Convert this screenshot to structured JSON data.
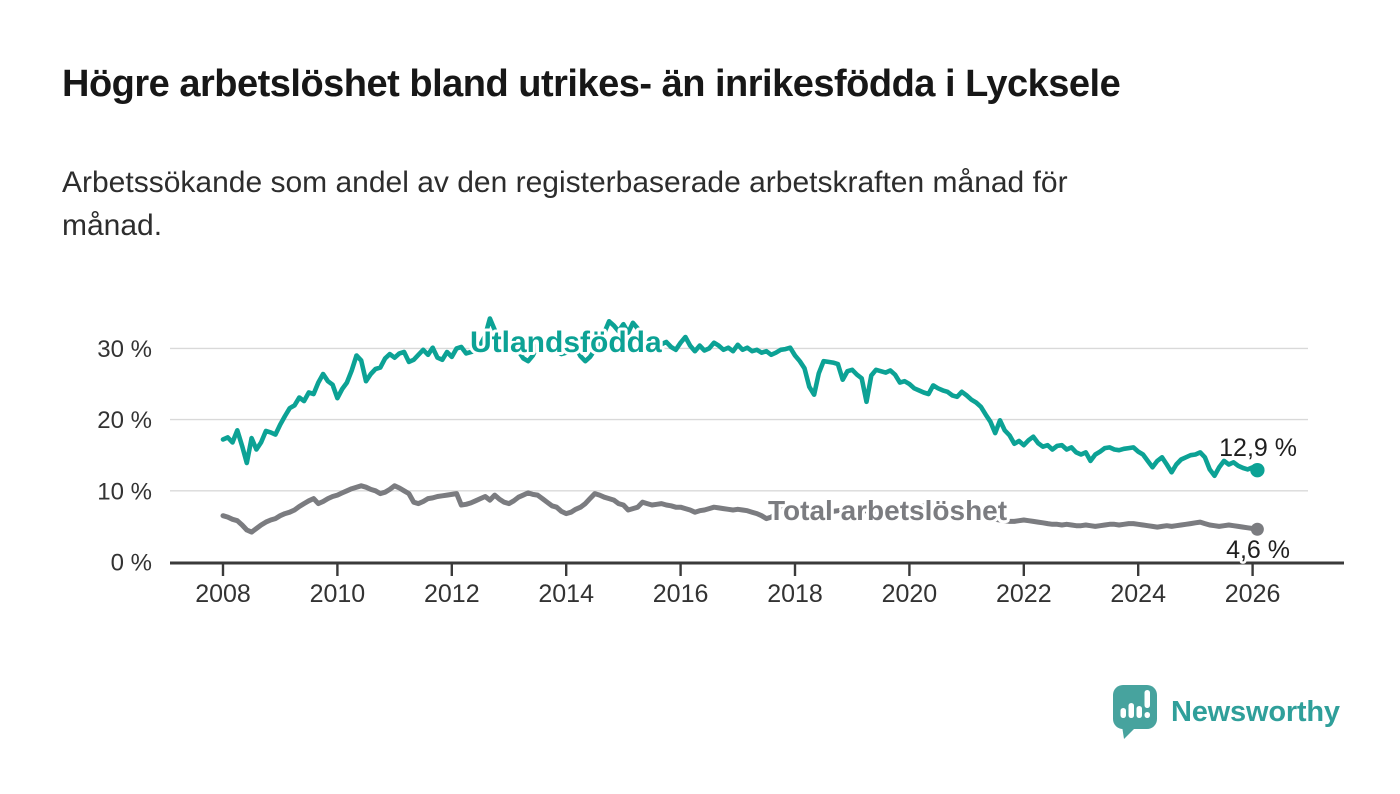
{
  "title": "Högre arbetslöshet bland utrikes- än inrikesfödda i Lycksele",
  "subtitle_lines": [
    "Arbetssökande som andel av den registerbaserade arbetskraften månad för",
    "månad."
  ],
  "chart_data": {
    "type": "line",
    "unit": "%",
    "frequency": "monthly",
    "x_start": "2008-01",
    "x_end": "2026-02",
    "grid": "horizontal",
    "ylim": [
      0,
      36
    ],
    "x_ticks": [
      "2008",
      "2010",
      "2012",
      "2014",
      "2016",
      "2018",
      "2020",
      "2022",
      "2024",
      "2026"
    ],
    "y_ticks": [
      {
        "value": 0,
        "label": "0 %"
      },
      {
        "value": 10,
        "label": "10 %"
      },
      {
        "value": 20,
        "label": "20 %"
      },
      {
        "value": 30,
        "label": "30 %"
      }
    ],
    "series": [
      {
        "name": "Utlandsfödda",
        "color": "#0ca295",
        "end_value": 12.9,
        "end_label": "12,9 %",
        "values": [
          17.2,
          17.5,
          16.8,
          18.5,
          16.3,
          13.9,
          17.4,
          15.8,
          16.8,
          18.4,
          18.2,
          17.9,
          19.3,
          20.5,
          21.6,
          22.0,
          23.1,
          22.6,
          23.8,
          23.6,
          25.2,
          26.4,
          25.4,
          24.9,
          23.0,
          24.3,
          25.2,
          26.9,
          29.0,
          28.3,
          25.4,
          26.4,
          27.1,
          27.3,
          28.6,
          29.2,
          28.7,
          29.3,
          29.5,
          28.1,
          28.4,
          29.1,
          29.8,
          29.1,
          30.1,
          28.7,
          28.4,
          29.5,
          28.8,
          30.0,
          30.2,
          29.3,
          29.5,
          29.7,
          30.5,
          31.8,
          34.2,
          32.6,
          30.4,
          29.6,
          30.2,
          30.8,
          29.6,
          28.6,
          28.2,
          29.0,
          30.4,
          31.2,
          30.6,
          30.0,
          29.6,
          29.2,
          29.4,
          29.8,
          30.2,
          28.9,
          28.2,
          28.8,
          29.8,
          31.0,
          32.2,
          33.8,
          33.2,
          32.4,
          33.4,
          32.2,
          33.6,
          32.8,
          31.0,
          29.6,
          30.8,
          31.6,
          30.6,
          30.9,
          30.2,
          29.8,
          30.8,
          31.6,
          30.4,
          29.6,
          30.4,
          29.7,
          30.0,
          30.8,
          30.4,
          29.8,
          30.1,
          29.6,
          30.5,
          29.8,
          30.1,
          29.6,
          29.8,
          29.4,
          29.6,
          29.1,
          29.4,
          29.8,
          29.9,
          30.1,
          29.0,
          28.2,
          27.2,
          24.6,
          23.5,
          26.5,
          28.2,
          28.1,
          28.0,
          27.8,
          25.6,
          26.8,
          27.0,
          26.3,
          25.8,
          22.5,
          26.2,
          27.0,
          26.8,
          26.6,
          26.9,
          26.3,
          25.2,
          25.4,
          25.0,
          24.4,
          24.1,
          23.8,
          23.6,
          24.8,
          24.4,
          24.1,
          23.9,
          23.4,
          23.2,
          23.9,
          23.4,
          22.8,
          22.4,
          21.8,
          20.7,
          19.7,
          18.1,
          19.9,
          18.5,
          17.8,
          16.6,
          17.0,
          16.4,
          17.1,
          17.6,
          16.7,
          16.2,
          16.4,
          15.8,
          16.3,
          16.4,
          15.8,
          16.1,
          15.4,
          15.1,
          15.4,
          14.2,
          15.1,
          15.5,
          16.0,
          16.1,
          15.8,
          15.7,
          15.9,
          16.0,
          16.1,
          15.5,
          15.1,
          14.2,
          13.3,
          14.2,
          14.7,
          13.7,
          12.6,
          13.7,
          14.4,
          14.7,
          15.0,
          15.1,
          15.4,
          14.7,
          13.0,
          12.1,
          13.3,
          14.2,
          13.7,
          14.0,
          13.5,
          13.2,
          13.0,
          13.3,
          12.9
        ]
      },
      {
        "name": "Total arbetslöshet",
        "color": "#7b7c80",
        "end_value": 4.6,
        "end_label": "4,6 %",
        "values": [
          6.5,
          6.3,
          6.0,
          5.8,
          5.2,
          4.5,
          4.2,
          4.7,
          5.2,
          5.6,
          5.9,
          6.1,
          6.5,
          6.8,
          7.0,
          7.3,
          7.8,
          8.2,
          8.6,
          8.9,
          8.2,
          8.5,
          8.9,
          9.2,
          9.4,
          9.7,
          10.0,
          10.3,
          10.5,
          10.7,
          10.5,
          10.2,
          10.0,
          9.6,
          9.8,
          10.2,
          10.7,
          10.4,
          10.0,
          9.6,
          8.4,
          8.2,
          8.5,
          8.9,
          9.0,
          9.2,
          9.3,
          9.4,
          9.5,
          9.6,
          8.0,
          8.1,
          8.3,
          8.6,
          8.9,
          9.2,
          8.7,
          9.4,
          8.8,
          8.4,
          8.2,
          8.6,
          9.1,
          9.4,
          9.7,
          9.5,
          9.4,
          8.9,
          8.4,
          7.9,
          7.7,
          7.1,
          6.8,
          7.0,
          7.4,
          7.7,
          8.2,
          8.9,
          9.6,
          9.4,
          9.1,
          8.9,
          8.7,
          8.2,
          8.0,
          7.3,
          7.5,
          7.7,
          8.4,
          8.2,
          8.0,
          8.1,
          8.2,
          8.0,
          7.9,
          7.7,
          7.7,
          7.5,
          7.3,
          7.0,
          7.2,
          7.3,
          7.5,
          7.7,
          7.6,
          7.5,
          7.4,
          7.3,
          7.4,
          7.3,
          7.2,
          7.0,
          6.8,
          6.5,
          6.1,
          6.3,
          6.8,
          7.3,
          7.5,
          7.6,
          7.7,
          7.6,
          7.4,
          7.2,
          7.3,
          7.4,
          7.2,
          7.0,
          7.1,
          7.2,
          7.3,
          7.2,
          7.1,
          7.0,
          7.1,
          7.2,
          7.1,
          7.0,
          6.9,
          7.0,
          7.1,
          7.0,
          6.9,
          7.0,
          7.2,
          7.3,
          7.6,
          7.9,
          8.0,
          7.9,
          7.8,
          7.7,
          7.5,
          7.3,
          7.1,
          7.0,
          6.9,
          6.8,
          6.7,
          6.5,
          6.3,
          6.1,
          6.0,
          5.9,
          5.8,
          5.7,
          5.7,
          5.8,
          5.9,
          5.8,
          5.7,
          5.6,
          5.5,
          5.4,
          5.3,
          5.3,
          5.2,
          5.3,
          5.2,
          5.1,
          5.1,
          5.2,
          5.1,
          5.0,
          5.1,
          5.2,
          5.3,
          5.3,
          5.2,
          5.3,
          5.4,
          5.4,
          5.3,
          5.2,
          5.1,
          5.0,
          4.9,
          5.0,
          5.1,
          5.0,
          5.1,
          5.2,
          5.3,
          5.4,
          5.5,
          5.6,
          5.4,
          5.2,
          5.1,
          5.0,
          5.1,
          5.2,
          5.1,
          5.0,
          4.9,
          4.8,
          4.7,
          4.6
        ]
      }
    ],
    "colors": {
      "gridline": "#d9d9d9",
      "axis": "#3a3a3a",
      "tick_text": "#333333",
      "annotation_text": "#1f1f1f"
    }
  },
  "branding": {
    "logo_text": "Newsworthy",
    "logo_icon": "speech-bubble-bar-chart",
    "logo_bubble_color": "#47a39e",
    "logo_text_color": "#2f9f9a"
  }
}
